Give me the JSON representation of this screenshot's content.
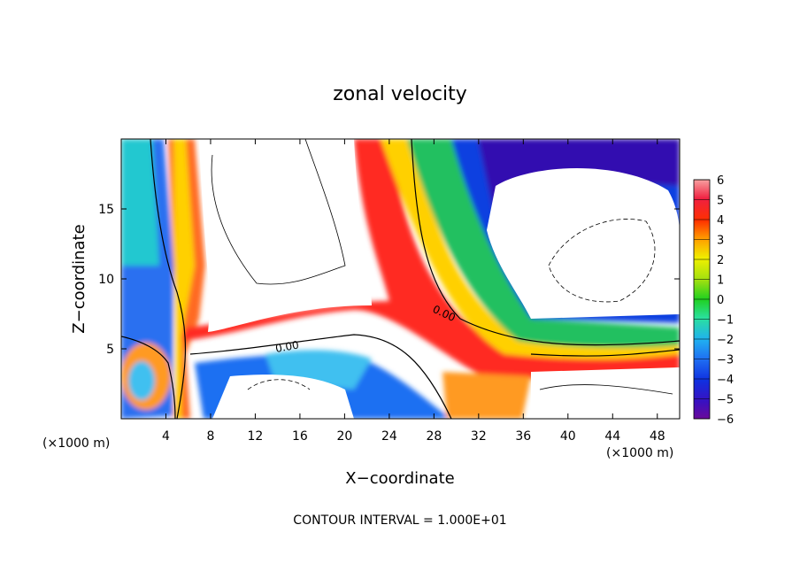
{
  "chart_data": {
    "type": "heatmap",
    "title": "zonal velocity",
    "xlabel": "X−coordinate",
    "ylabel": "Z−coordinate",
    "x_unit": "(×1000 m)",
    "z_unit": "(×1000 m)",
    "xlim": [
      0,
      50
    ],
    "ylim": [
      0,
      20
    ],
    "x_ticks": [
      4,
      8,
      12,
      16,
      20,
      24,
      28,
      32,
      36,
      40,
      44,
      48
    ],
    "y_ticks": [
      5,
      10,
      15
    ],
    "colorbar": {
      "min": -6,
      "max": 6,
      "labels": [
        "6",
        "5",
        "4",
        "3",
        "2",
        "1",
        "0",
        "−1",
        "−2",
        "−3",
        "−4",
        "−5",
        "−6"
      ]
    },
    "contour_labels": [
      "0.00",
      "0.00"
    ],
    "footer": "CONTOUR INTERVAL = 1.000E+01"
  }
}
